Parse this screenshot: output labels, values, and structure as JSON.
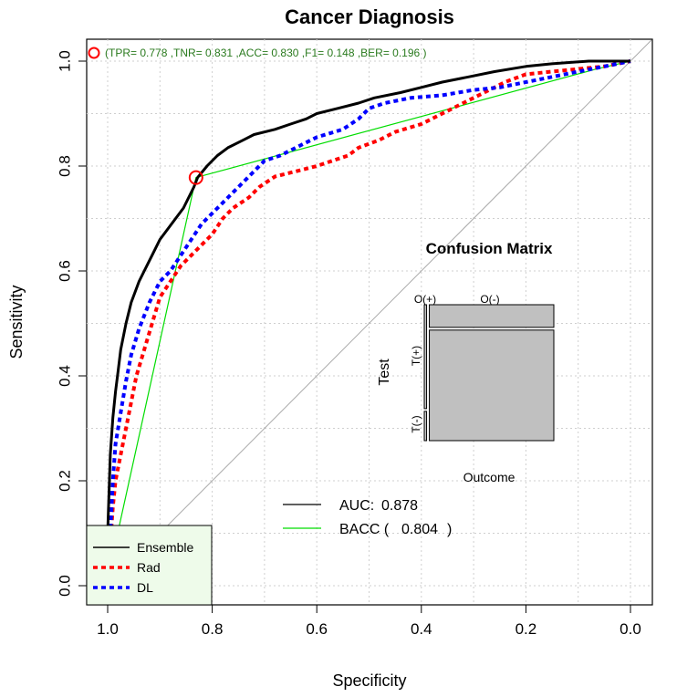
{
  "chart_data": {
    "type": "line",
    "title": "Cancer Diagnosis",
    "xlabel": "Specificity",
    "ylabel": "Sensitivity",
    "xlim": [
      1.0,
      0.0
    ],
    "ylim": [
      0.0,
      1.0
    ],
    "x_ticks": [
      "1.0",
      "0.8",
      "0.6",
      "0.4",
      "0.2",
      "0.0"
    ],
    "y_ticks": [
      "0.0",
      "0.2",
      "0.4",
      "0.6",
      "0.8",
      "1.0"
    ],
    "grid": true,
    "colors": {
      "ensemble": "#000000",
      "rad": "#ff0000",
      "dl": "#0000ff",
      "bacc": "#00dd00",
      "diagonal": "#aaaaaa",
      "metrics_text": "#2a7a1e",
      "legend_bg": "#eefbea",
      "matrix_fill": "#c0c0c0"
    },
    "series": [
      {
        "name": "Ensemble",
        "style": "solid",
        "points": [
          [
            1.0,
            0.0
          ],
          [
            1.0,
            0.1
          ],
          [
            0.995,
            0.25
          ],
          [
            0.99,
            0.32
          ],
          [
            0.985,
            0.37
          ],
          [
            0.98,
            0.41
          ],
          [
            0.975,
            0.45
          ],
          [
            0.965,
            0.5
          ],
          [
            0.955,
            0.54
          ],
          [
            0.94,
            0.58
          ],
          [
            0.93,
            0.6
          ],
          [
            0.915,
            0.63
          ],
          [
            0.9,
            0.66
          ],
          [
            0.885,
            0.68
          ],
          [
            0.87,
            0.7
          ],
          [
            0.855,
            0.72
          ],
          [
            0.845,
            0.74
          ],
          [
            0.835,
            0.76
          ],
          [
            0.828,
            0.778
          ],
          [
            0.81,
            0.8
          ],
          [
            0.79,
            0.82
          ],
          [
            0.77,
            0.835
          ],
          [
            0.74,
            0.85
          ],
          [
            0.72,
            0.86
          ],
          [
            0.68,
            0.87
          ],
          [
            0.65,
            0.88
          ],
          [
            0.62,
            0.89
          ],
          [
            0.6,
            0.9
          ],
          [
            0.56,
            0.91
          ],
          [
            0.52,
            0.92
          ],
          [
            0.49,
            0.93
          ],
          [
            0.44,
            0.94
          ],
          [
            0.4,
            0.95
          ],
          [
            0.36,
            0.96
          ],
          [
            0.31,
            0.97
          ],
          [
            0.26,
            0.98
          ],
          [
            0.2,
            0.99
          ],
          [
            0.15,
            0.995
          ],
          [
            0.08,
            1.0
          ],
          [
            0.0,
            1.0
          ]
        ]
      },
      {
        "name": "Rad",
        "style": "dashed",
        "points": [
          [
            1.0,
            0.0
          ],
          [
            0.995,
            0.08
          ],
          [
            0.99,
            0.15
          ],
          [
            0.985,
            0.2
          ],
          [
            0.975,
            0.25
          ],
          [
            0.965,
            0.3
          ],
          [
            0.955,
            0.35
          ],
          [
            0.945,
            0.4
          ],
          [
            0.93,
            0.45
          ],
          [
            0.915,
            0.5
          ],
          [
            0.9,
            0.55
          ],
          [
            0.88,
            0.58
          ],
          [
            0.86,
            0.61
          ],
          [
            0.84,
            0.63
          ],
          [
            0.82,
            0.65
          ],
          [
            0.8,
            0.67
          ],
          [
            0.78,
            0.7
          ],
          [
            0.76,
            0.72
          ],
          [
            0.73,
            0.74
          ],
          [
            0.71,
            0.76
          ],
          [
            0.68,
            0.78
          ],
          [
            0.64,
            0.79
          ],
          [
            0.6,
            0.8
          ],
          [
            0.57,
            0.81
          ],
          [
            0.54,
            0.82
          ],
          [
            0.52,
            0.835
          ],
          [
            0.48,
            0.85
          ],
          [
            0.45,
            0.865
          ],
          [
            0.4,
            0.88
          ],
          [
            0.36,
            0.9
          ],
          [
            0.32,
            0.92
          ],
          [
            0.28,
            0.94
          ],
          [
            0.24,
            0.96
          ],
          [
            0.2,
            0.975
          ],
          [
            0.15,
            0.98
          ],
          [
            0.1,
            0.985
          ],
          [
            0.05,
            0.99
          ],
          [
            0.0,
            1.0
          ]
        ]
      },
      {
        "name": "DL",
        "style": "dashed",
        "points": [
          [
            1.0,
            0.0
          ],
          [
            0.995,
            0.1
          ],
          [
            0.99,
            0.2
          ],
          [
            0.985,
            0.27
          ],
          [
            0.975,
            0.33
          ],
          [
            0.965,
            0.39
          ],
          [
            0.955,
            0.44
          ],
          [
            0.94,
            0.49
          ],
          [
            0.92,
            0.54
          ],
          [
            0.9,
            0.58
          ],
          [
            0.88,
            0.6
          ],
          [
            0.86,
            0.63
          ],
          [
            0.84,
            0.66
          ],
          [
            0.82,
            0.69
          ],
          [
            0.8,
            0.71
          ],
          [
            0.78,
            0.73
          ],
          [
            0.76,
            0.75
          ],
          [
            0.74,
            0.77
          ],
          [
            0.72,
            0.79
          ],
          [
            0.7,
            0.81
          ],
          [
            0.67,
            0.82
          ],
          [
            0.63,
            0.84
          ],
          [
            0.6,
            0.855
          ],
          [
            0.55,
            0.87
          ],
          [
            0.52,
            0.89
          ],
          [
            0.5,
            0.91
          ],
          [
            0.47,
            0.92
          ],
          [
            0.42,
            0.93
          ],
          [
            0.36,
            0.935
          ],
          [
            0.3,
            0.945
          ],
          [
            0.25,
            0.95
          ],
          [
            0.2,
            0.96
          ],
          [
            0.15,
            0.97
          ],
          [
            0.1,
            0.98
          ],
          [
            0.05,
            0.99
          ],
          [
            0.0,
            1.0
          ]
        ]
      },
      {
        "name": "BACC",
        "style": "solid-thin",
        "points": [
          [
            1.0,
            0.0
          ],
          [
            0.978,
            0.113
          ],
          [
            0.831,
            0.778
          ],
          [
            0.065,
            0.985
          ],
          [
            0.0,
            1.0
          ]
        ]
      }
    ],
    "legend": {
      "position": "bottom-left",
      "entries": [
        "Ensemble",
        "Rad",
        "DL"
      ]
    },
    "auc_legend": {
      "auc_label": "AUC:",
      "auc_value": "0.878",
      "bacc_label": "BACC (",
      "bacc_value": "0.804",
      "bacc_close": ")"
    },
    "operating_point": {
      "specificity": 0.831,
      "sensitivity": 0.778,
      "label": "(TPR= 0.778 ,TNR= 0.831 ,ACC= 0.830 ,F1= 0.148 ,BER= 0.196 )"
    },
    "confusion_matrix": {
      "title": "Confusion Matrix",
      "row_axis": "Test",
      "col_axis": "Outcome",
      "row_labels": [
        "T(+)",
        "T(-)"
      ],
      "col_labels": [
        "O(+)",
        "O(-)"
      ],
      "proportions": {
        "col_o_pos": 0.018,
        "row_t_pos_in_o_pos": 0.78,
        "row_t_pos_in_o_neg": 0.17
      }
    }
  }
}
